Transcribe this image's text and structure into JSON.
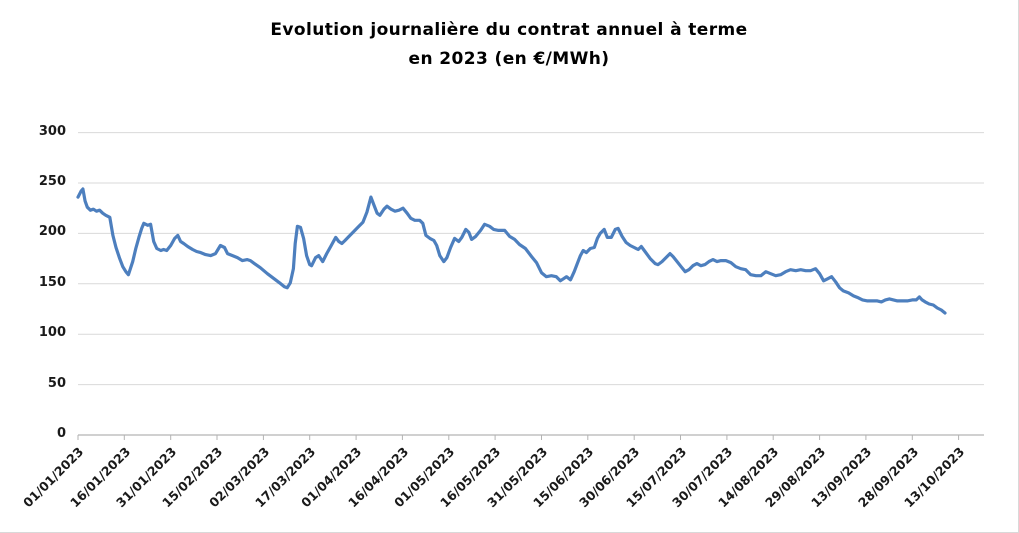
{
  "title": {
    "line1": "Evolution journalière du contrat annuel à terme",
    "line2": "en 2023 (en €/MWh)"
  },
  "colors": {
    "line": "#4d7fbe",
    "gridline": "#d9d9d9",
    "axis_line": "#b3b3b3",
    "tick_label": "#1a1a1a",
    "title_text": "#000000",
    "background": "#ffffff"
  },
  "chart_data": {
    "type": "line",
    "title": "Evolution journalière du contrat annuel à terme en 2023 (en €/MWh)",
    "unit_label": "€/MWh",
    "ylim": [
      0,
      300
    ],
    "y_ticks": [
      0,
      50,
      100,
      150,
      200,
      250,
      300
    ],
    "x_tick_labels": [
      "01/01/2023",
      "16/01/2023",
      "31/01/2023",
      "15/02/2023",
      "02/03/2023",
      "17/03/2023",
      "01/04/2023",
      "16/04/2023",
      "01/05/2023",
      "16/05/2023",
      "31/05/2023",
      "15/06/2023",
      "30/06/2023",
      "15/07/2023",
      "30/07/2023",
      "14/08/2023",
      "29/08/2023",
      "13/09/2023",
      "28/09/2023",
      "13/10/2023"
    ],
    "x_tick_interval_days": 15,
    "x_range_days": [
      0,
      285
    ],
    "grid": "horizontal-only",
    "legend": "none",
    "points": [
      [
        0,
        236
      ],
      [
        1,
        242
      ],
      [
        1.6,
        244
      ],
      [
        2.3,
        232
      ],
      [
        3,
        226
      ],
      [
        4,
        223
      ],
      [
        5,
        224
      ],
      [
        6,
        222
      ],
      [
        7,
        223
      ],
      [
        8,
        220
      ],
      [
        9,
        218
      ],
      [
        10.3,
        216
      ],
      [
        11.3,
        198
      ],
      [
        12.3,
        186
      ],
      [
        13.5,
        175
      ],
      [
        14.5,
        167
      ],
      [
        15.5,
        162
      ],
      [
        16.3,
        159
      ],
      [
        17.7,
        172
      ],
      [
        18.7,
        185
      ],
      [
        19.7,
        196
      ],
      [
        20.6,
        205
      ],
      [
        21.3,
        210
      ],
      [
        22.6,
        208
      ],
      [
        23.5,
        209
      ],
      [
        24.5,
        192
      ],
      [
        25.5,
        185
      ],
      [
        26.8,
        183
      ],
      [
        27.7,
        184
      ],
      [
        28.7,
        183
      ],
      [
        30,
        188
      ],
      [
        31.3,
        195
      ],
      [
        32.3,
        198
      ],
      [
        33.2,
        192
      ],
      [
        34.2,
        190
      ],
      [
        35.5,
        187
      ],
      [
        37.1,
        184
      ],
      [
        38.4,
        182
      ],
      [
        39.7,
        181
      ],
      [
        41.3,
        179
      ],
      [
        42.9,
        178
      ],
      [
        44.5,
        180
      ],
      [
        46.1,
        188
      ],
      [
        47.4,
        186
      ],
      [
        48.4,
        180
      ],
      [
        50,
        178
      ],
      [
        51.6,
        176
      ],
      [
        53.2,
        173
      ],
      [
        54.8,
        174
      ],
      [
        55.8,
        173
      ],
      [
        57.1,
        170
      ],
      [
        59,
        166
      ],
      [
        61.3,
        160
      ],
      [
        63.5,
        155
      ],
      [
        65.2,
        151
      ],
      [
        66.8,
        147
      ],
      [
        67.7,
        146
      ],
      [
        68.7,
        151
      ],
      [
        69.7,
        165
      ],
      [
        70.3,
        190
      ],
      [
        71,
        207
      ],
      [
        72,
        206
      ],
      [
        73,
        195
      ],
      [
        74,
        178
      ],
      [
        75,
        169
      ],
      [
        75.6,
        168
      ],
      [
        76.9,
        176
      ],
      [
        77.9,
        178
      ],
      [
        79.2,
        172
      ],
      [
        80.5,
        180
      ],
      [
        81.8,
        187
      ],
      [
        83.4,
        196
      ],
      [
        84.4,
        192
      ],
      [
        85.4,
        190
      ],
      [
        86.4,
        193
      ],
      [
        87.7,
        197
      ],
      [
        89.3,
        202
      ],
      [
        90.9,
        207
      ],
      [
        92.2,
        211
      ],
      [
        93.5,
        221
      ],
      [
        94.8,
        236
      ],
      [
        95.8,
        228
      ],
      [
        96.8,
        220
      ],
      [
        97.7,
        218
      ],
      [
        99,
        224
      ],
      [
        100,
        227
      ],
      [
        101.3,
        224
      ],
      [
        102.6,
        222
      ],
      [
        103.9,
        223
      ],
      [
        105.2,
        225
      ],
      [
        106.5,
        220
      ],
      [
        107.7,
        215
      ],
      [
        109,
        213
      ],
      [
        110.6,
        213
      ],
      [
        111.6,
        210
      ],
      [
        112.6,
        198
      ],
      [
        113.9,
        195
      ],
      [
        115.2,
        193
      ],
      [
        116.1,
        188
      ],
      [
        117.1,
        178
      ],
      [
        118.4,
        172
      ],
      [
        119.4,
        176
      ],
      [
        120.6,
        186
      ],
      [
        121.9,
        195
      ],
      [
        123.2,
        192
      ],
      [
        124.2,
        196
      ],
      [
        125.5,
        204
      ],
      [
        126.5,
        201
      ],
      [
        127.4,
        194
      ],
      [
        128.7,
        197
      ],
      [
        130.3,
        203
      ],
      [
        131.6,
        209
      ],
      [
        133.2,
        207
      ],
      [
        134.5,
        204
      ],
      [
        136.1,
        203
      ],
      [
        138.1,
        203
      ],
      [
        139.7,
        197
      ],
      [
        141.3,
        194
      ],
      [
        142.9,
        189
      ],
      [
        144.8,
        185
      ],
      [
        146.8,
        177
      ],
      [
        148.4,
        171
      ],
      [
        150,
        161
      ],
      [
        151.6,
        157
      ],
      [
        153.2,
        158
      ],
      [
        154.8,
        157
      ],
      [
        156.1,
        153
      ],
      [
        157.1,
        155
      ],
      [
        158.1,
        157
      ],
      [
        159.4,
        154
      ],
      [
        160.6,
        162
      ],
      [
        161.6,
        170
      ],
      [
        162.6,
        178
      ],
      [
        163.5,
        183
      ],
      [
        164.5,
        181
      ],
      [
        165.8,
        185
      ],
      [
        167.1,
        186
      ],
      [
        168.1,
        195
      ],
      [
        169,
        200
      ],
      [
        170.3,
        204
      ],
      [
        171.3,
        196
      ],
      [
        172.6,
        196
      ],
      [
        173.9,
        204
      ],
      [
        174.8,
        205
      ],
      [
        176.1,
        197
      ],
      [
        177.4,
        191
      ],
      [
        178.7,
        188
      ],
      [
        180,
        186
      ],
      [
        181.3,
        184
      ],
      [
        182.3,
        187
      ],
      [
        183.5,
        182
      ],
      [
        185.2,
        175
      ],
      [
        186.8,
        170
      ],
      [
        187.7,
        169
      ],
      [
        189,
        172
      ],
      [
        190.3,
        176
      ],
      [
        191.6,
        180
      ],
      [
        192.6,
        177
      ],
      [
        193.9,
        172
      ],
      [
        195.2,
        167
      ],
      [
        196.5,
        162
      ],
      [
        197.7,
        164
      ],
      [
        199,
        168
      ],
      [
        200.3,
        170
      ],
      [
        201.6,
        168
      ],
      [
        202.9,
        169
      ],
      [
        204.2,
        172
      ],
      [
        205.5,
        174
      ],
      [
        206.8,
        172
      ],
      [
        208.1,
        173
      ],
      [
        209.7,
        173
      ],
      [
        211.3,
        171
      ],
      [
        212.9,
        167
      ],
      [
        214.5,
        165
      ],
      [
        216.1,
        164
      ],
      [
        217.7,
        159
      ],
      [
        219.4,
        158
      ],
      [
        221,
        158
      ],
      [
        222.6,
        162
      ],
      [
        224.2,
        160
      ],
      [
        225.8,
        158
      ],
      [
        227.4,
        159
      ],
      [
        229,
        162
      ],
      [
        230.6,
        164
      ],
      [
        232.3,
        163
      ],
      [
        233.9,
        164
      ],
      [
        235.5,
        163
      ],
      [
        237.1,
        163
      ],
      [
        238.7,
        165
      ],
      [
        240,
        160
      ],
      [
        241.3,
        153
      ],
      [
        242.6,
        155
      ],
      [
        243.9,
        157
      ],
      [
        245.2,
        152
      ],
      [
        246.5,
        146
      ],
      [
        247.7,
        143
      ],
      [
        249.4,
        141
      ],
      [
        251,
        138
      ],
      [
        252.6,
        136
      ],
      [
        253.9,
        134
      ],
      [
        255.5,
        133
      ],
      [
        257.1,
        133
      ],
      [
        258.7,
        133
      ],
      [
        260,
        132
      ],
      [
        261.3,
        134
      ],
      [
        262.6,
        135
      ],
      [
        263.9,
        134
      ],
      [
        265.2,
        133
      ],
      [
        266.8,
        133
      ],
      [
        268.4,
        133
      ],
      [
        270,
        134
      ],
      [
        271.3,
        134
      ],
      [
        272.3,
        137
      ],
      [
        273.2,
        134
      ],
      [
        274.2,
        132
      ],
      [
        275.5,
        130
      ],
      [
        276.8,
        129
      ],
      [
        278.1,
        126
      ],
      [
        279.4,
        124
      ],
      [
        280.6,
        121
      ]
    ]
  }
}
